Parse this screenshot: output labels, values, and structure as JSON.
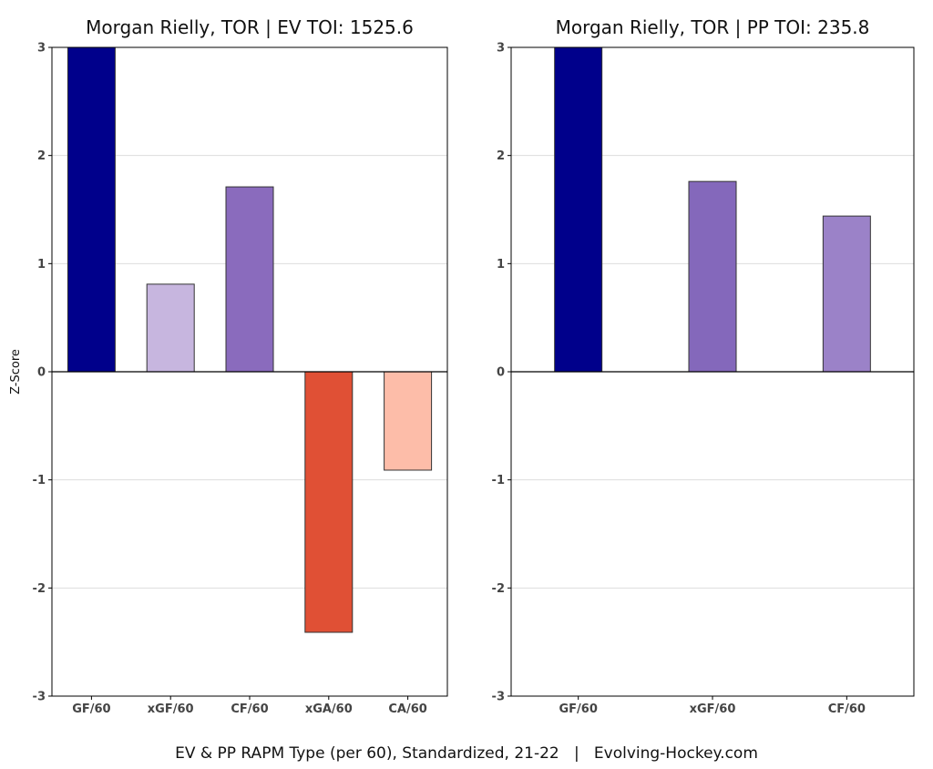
{
  "caption": "EV & PP RAPM Type (per 60), Standardized, 21-22   |   Evolving-Hockey.com",
  "colors": {
    "grid": "#dddddd",
    "frame": "#000000",
    "bar_stroke": "#333333"
  },
  "chart_data": [
    {
      "type": "bar",
      "title": "Morgan Rielly, TOR  |  EV TOI: 1525.6",
      "xlabel": "",
      "ylabel": "Z-Score",
      "ylim": [
        -3,
        3
      ],
      "yticks": [
        3,
        2,
        1,
        0,
        -1,
        -2,
        -3
      ],
      "grid": true,
      "categories": [
        "GF/60",
        "xGF/60",
        "CF/60",
        "xGA/60",
        "CA/60"
      ],
      "values": [
        3.0,
        0.81,
        1.71,
        -2.41,
        -0.91
      ],
      "colors": [
        "#00008b",
        "#c7b6df",
        "#8a6bbd",
        "#e05035",
        "#fdbda9"
      ]
    },
    {
      "type": "bar",
      "title": "Morgan Rielly, TOR  |  PP TOI: 235.8",
      "xlabel": "",
      "ylabel": "",
      "ylim": [
        -3,
        3
      ],
      "yticks": [
        3,
        2,
        1,
        0,
        -1,
        -2,
        -3
      ],
      "grid": true,
      "categories": [
        "GF/60",
        "xGF/60",
        "CF/60"
      ],
      "values": [
        3.0,
        1.76,
        1.44
      ],
      "colors": [
        "#00008b",
        "#8468bb",
        "#9b82c8"
      ]
    }
  ]
}
